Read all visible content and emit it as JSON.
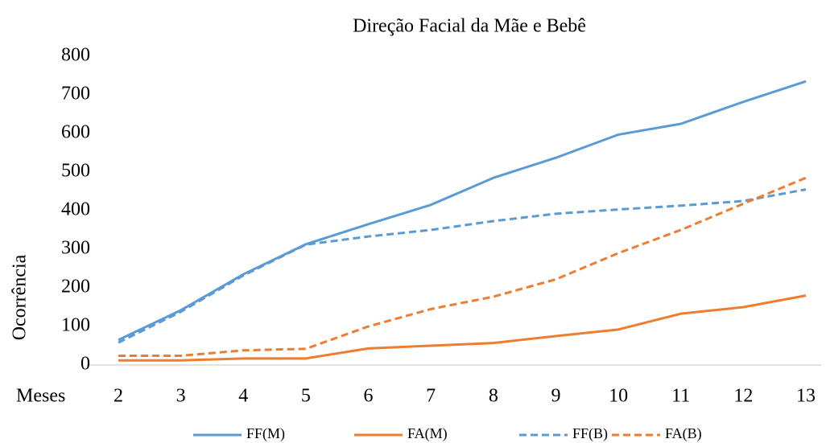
{
  "chart_data": {
    "type": "line",
    "title": "Direção Facial da Mãe e Bebê",
    "x_label": "Meses",
    "y_label": "Ocorrência",
    "categories": [
      "2",
      "3",
      "4",
      "5",
      "6",
      "7",
      "8",
      "9",
      "10",
      "11",
      "12",
      "13"
    ],
    "series": [
      {
        "name": "FF(M)",
        "color": "#5b9bd5",
        "dashed": false,
        "values": [
          65,
          142,
          235,
          313,
          365,
          415,
          485,
          537,
          597,
          625,
          682,
          735
        ]
      },
      {
        "name": "FA(M)",
        "color": "#ed7d31",
        "dashed": false,
        "values": [
          12,
          12,
          17,
          17,
          43,
          50,
          57,
          75,
          92,
          133,
          150,
          180
        ]
      },
      {
        "name": "FF(B)",
        "color": "#5b9bd5",
        "dashed": true,
        "values": [
          58,
          138,
          232,
          312,
          333,
          350,
          373,
          392,
          403,
          413,
          425,
          455
        ]
      },
      {
        "name": "FA(B)",
        "color": "#ed7d31",
        "dashed": true,
        "values": [
          24,
          24,
          38,
          42,
          100,
          145,
          177,
          222,
          290,
          350,
          418,
          485
        ]
      }
    ],
    "ylim": [
      0,
      800
    ],
    "yticks": [
      0,
      100,
      200,
      300,
      400,
      500,
      600,
      700,
      800
    ],
    "grid": false,
    "legend": "bottom"
  }
}
